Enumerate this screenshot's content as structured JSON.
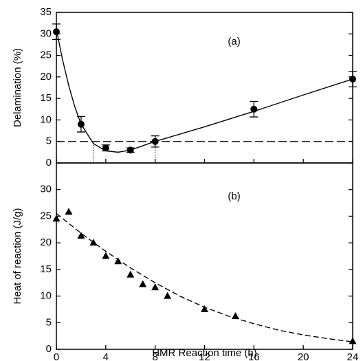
{
  "chart_data": [
    {
      "type": "scatter",
      "ylabel": "Delamination (%)",
      "annotation": "(a)",
      "xlim": [
        0,
        24
      ],
      "ylim": [
        0,
        35
      ],
      "yticks": [
        0,
        5,
        10,
        15,
        20,
        25,
        30,
        35
      ],
      "marker": "circle",
      "color": "#000000",
      "points": {
        "x": [
          0,
          2,
          4,
          6,
          8,
          16,
          24
        ],
        "values": [
          30.5,
          9,
          3.5,
          3,
          5,
          12.5,
          19.5
        ],
        "errors": [
          1.8,
          1.8,
          0.7,
          0.5,
          1.3,
          1.8,
          1.8
        ]
      },
      "fit": {
        "x": [
          0,
          0.5,
          1,
          1.5,
          2,
          3,
          4,
          5,
          6,
          7,
          8,
          10,
          12,
          16,
          20,
          24
        ],
        "values": [
          31,
          24,
          18,
          13,
          9,
          4.5,
          2.8,
          2.5,
          3,
          4,
          5,
          6.7,
          8.4,
          12,
          15.8,
          19.5
        ],
        "style": "solid"
      },
      "reference_line": 5,
      "marker_x": [
        3,
        8
      ]
    },
    {
      "type": "scatter",
      "ylabel": "Heat of reaction (J/g)",
      "xlabel": "HMR Reaction time (h)",
      "annotation": "(b)",
      "xlim": [
        0,
        24
      ],
      "ylim": [
        0,
        35
      ],
      "xticks": [
        0,
        4,
        8,
        12,
        16,
        20,
        24
      ],
      "yticks": [
        0,
        5,
        10,
        15,
        20,
        25,
        30
      ],
      "marker": "triangle",
      "color": "#000000",
      "points": {
        "x": [
          0,
          1,
          2,
          3,
          4,
          5,
          6,
          7,
          8,
          9,
          12,
          14.5,
          24
        ],
        "values": [
          24.5,
          25.8,
          21.3,
          20,
          17.5,
          16.5,
          14,
          12.2,
          11.6,
          10,
          7.5,
          6.2,
          1.5
        ]
      },
      "fit": {
        "x": [
          0,
          2,
          4,
          6,
          8,
          10,
          12,
          14,
          16,
          18,
          20,
          22,
          24
        ],
        "values": [
          25.5,
          21.8,
          18.4,
          15.3,
          12.5,
          10,
          7.9,
          6.2,
          4.8,
          3.6,
          2.7,
          2,
          1.4
        ],
        "style": "dashed"
      }
    }
  ]
}
